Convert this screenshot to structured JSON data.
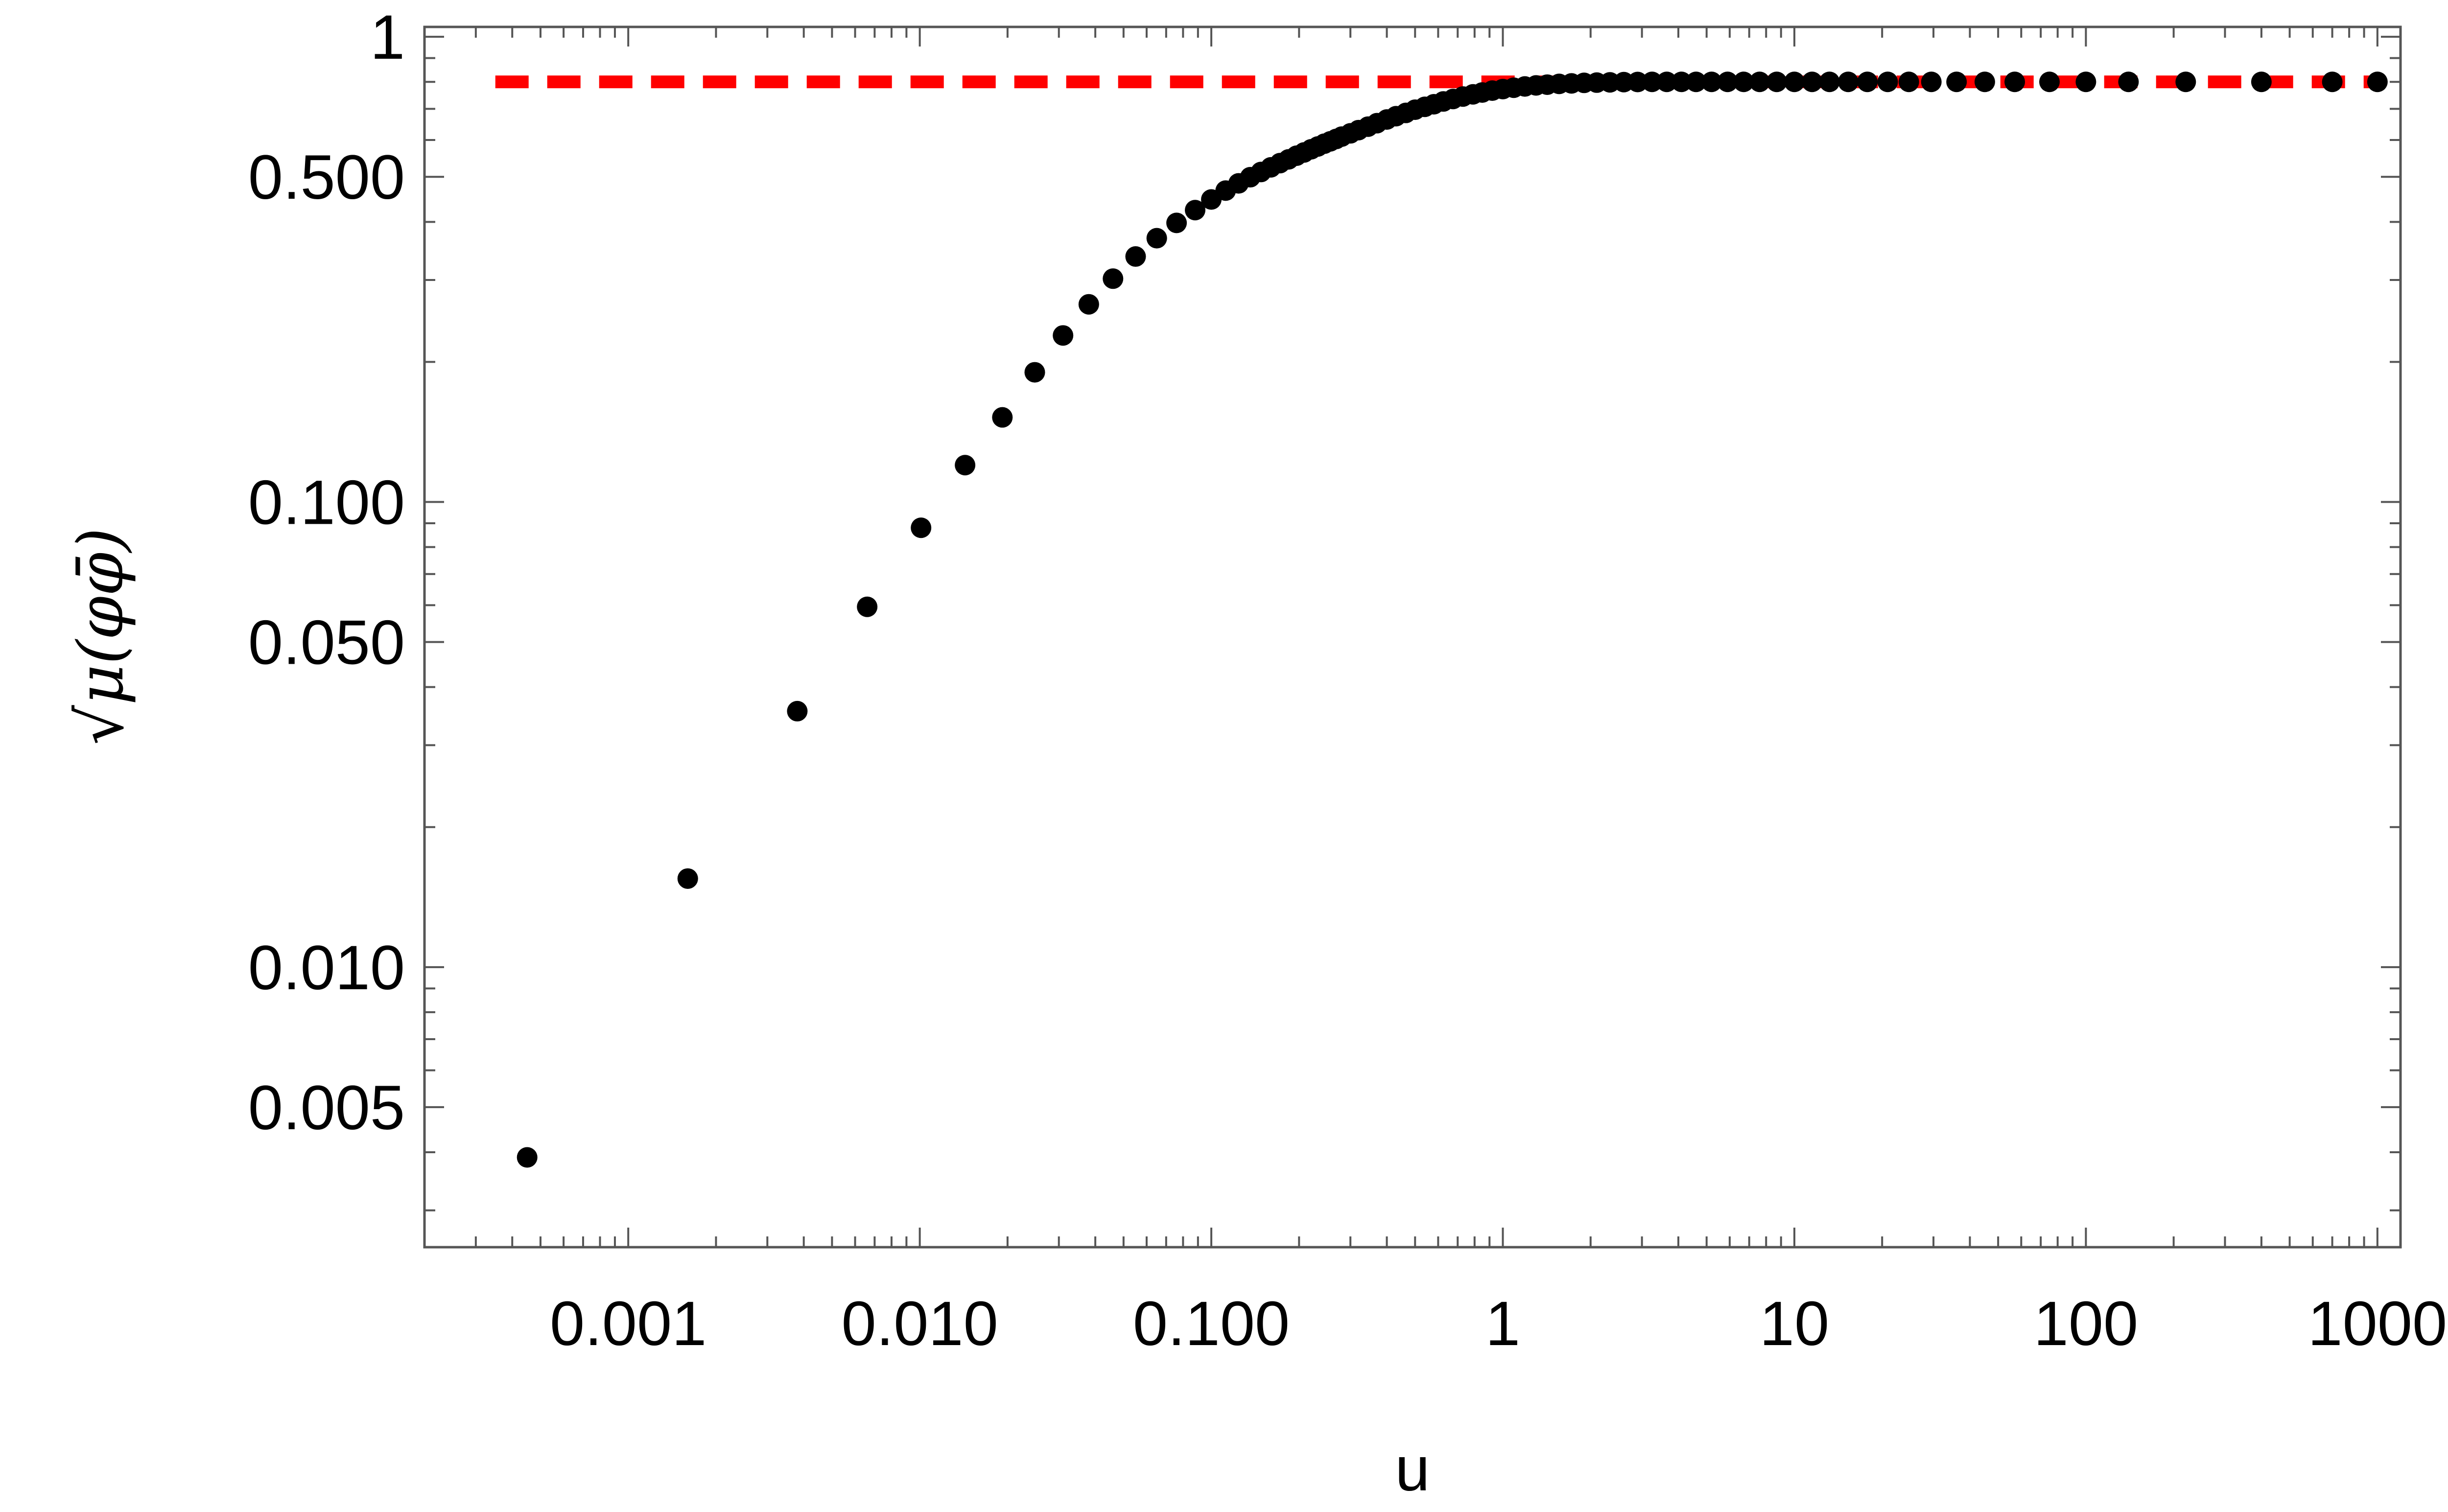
{
  "chart_data": {
    "type": "scatter",
    "title": "",
    "xlabel": "u",
    "ylabel": "√μ(φφ̄)",
    "xscale": "log",
    "yscale": "log",
    "xlim": [
      0.0002,
      1200
    ],
    "ylim": [
      0.0025,
      1.05
    ],
    "frame": true,
    "grid": false,
    "legend": "none",
    "x_ticks": [
      {
        "value": 0.001,
        "label": "0.001"
      },
      {
        "value": 0.01,
        "label": "0.010"
      },
      {
        "value": 0.1,
        "label": "0.100"
      },
      {
        "value": 1,
        "label": "1"
      },
      {
        "value": 10,
        "label": "10"
      },
      {
        "value": 100,
        "label": "100"
      },
      {
        "value": 1000,
        "label": "1000"
      }
    ],
    "y_ticks": [
      {
        "value": 0.005,
        "label": "0.005"
      },
      {
        "value": 0.01,
        "label": "0.010"
      },
      {
        "value": 0.05,
        "label": "0.050"
      },
      {
        "value": 0.1,
        "label": "0.100"
      },
      {
        "value": 0.5,
        "label": "0.500"
      },
      {
        "value": 1,
        "label": "1"
      }
    ],
    "colors": {
      "points": "#000000",
      "reference_line": "#ff0000",
      "frame": "#555555"
    },
    "reference_line": {
      "y": 0.8,
      "x_from": 0.00035,
      "x_to": 1000,
      "style": "dashed"
    },
    "series": [
      {
        "x": [
          0.00045,
          0.0016,
          0.0038,
          0.0066,
          0.0101,
          0.0143,
          0.0192,
          0.0248,
          0.031,
          0.038,
          0.046,
          0.055,
          0.065,
          0.076,
          0.088,
          0.1,
          0.112,
          0.124,
          0.136,
          0.148,
          0.16,
          0.172,
          0.184,
          0.196,
          0.208,
          0.22,
          0.232,
          0.244,
          0.256,
          0.268,
          0.28,
          0.3,
          0.32,
          0.345,
          0.37,
          0.4,
          0.43,
          0.465,
          0.5,
          0.54,
          0.58,
          0.625,
          0.675,
          0.73,
          0.79,
          0.85,
          0.92,
          1.0,
          1.09,
          1.19,
          1.3,
          1.42,
          1.56,
          1.72,
          1.9,
          2.1,
          2.33,
          2.6,
          2.9,
          3.25,
          3.65,
          4.1,
          4.6,
          5.2,
          5.9,
          6.7,
          7.6,
          8.7,
          10.0,
          11.5,
          13.2,
          15.3,
          17.8,
          20.9,
          24.7,
          29.5,
          36.0,
          45.0,
          57.0,
          75.0,
          100.0,
          140.0,
          220.0,
          400.0,
          700.0,
          1000.0
        ],
        "y": [
          0.0039,
          0.0155,
          0.0355,
          0.0595,
          0.088,
          0.12,
          0.152,
          0.19,
          0.228,
          0.266,
          0.302,
          0.337,
          0.369,
          0.398,
          0.424,
          0.447,
          0.467,
          0.484,
          0.499,
          0.512,
          0.524,
          0.535,
          0.545,
          0.555,
          0.564,
          0.573,
          0.581,
          0.589,
          0.596,
          0.603,
          0.61,
          0.62,
          0.63,
          0.641,
          0.652,
          0.664,
          0.675,
          0.686,
          0.697,
          0.707,
          0.716,
          0.726,
          0.735,
          0.744,
          0.752,
          0.759,
          0.766,
          0.772,
          0.777,
          0.782,
          0.786,
          0.789,
          0.792,
          0.794,
          0.796,
          0.797,
          0.798,
          0.799,
          0.7995,
          0.8,
          0.8,
          0.8,
          0.8,
          0.8,
          0.8,
          0.8,
          0.8,
          0.8,
          0.8,
          0.8,
          0.8,
          0.8,
          0.8,
          0.8,
          0.8,
          0.8,
          0.8,
          0.8,
          0.8,
          0.8,
          0.8,
          0.8,
          0.8,
          0.8,
          0.8,
          0.8
        ]
      }
    ]
  }
}
